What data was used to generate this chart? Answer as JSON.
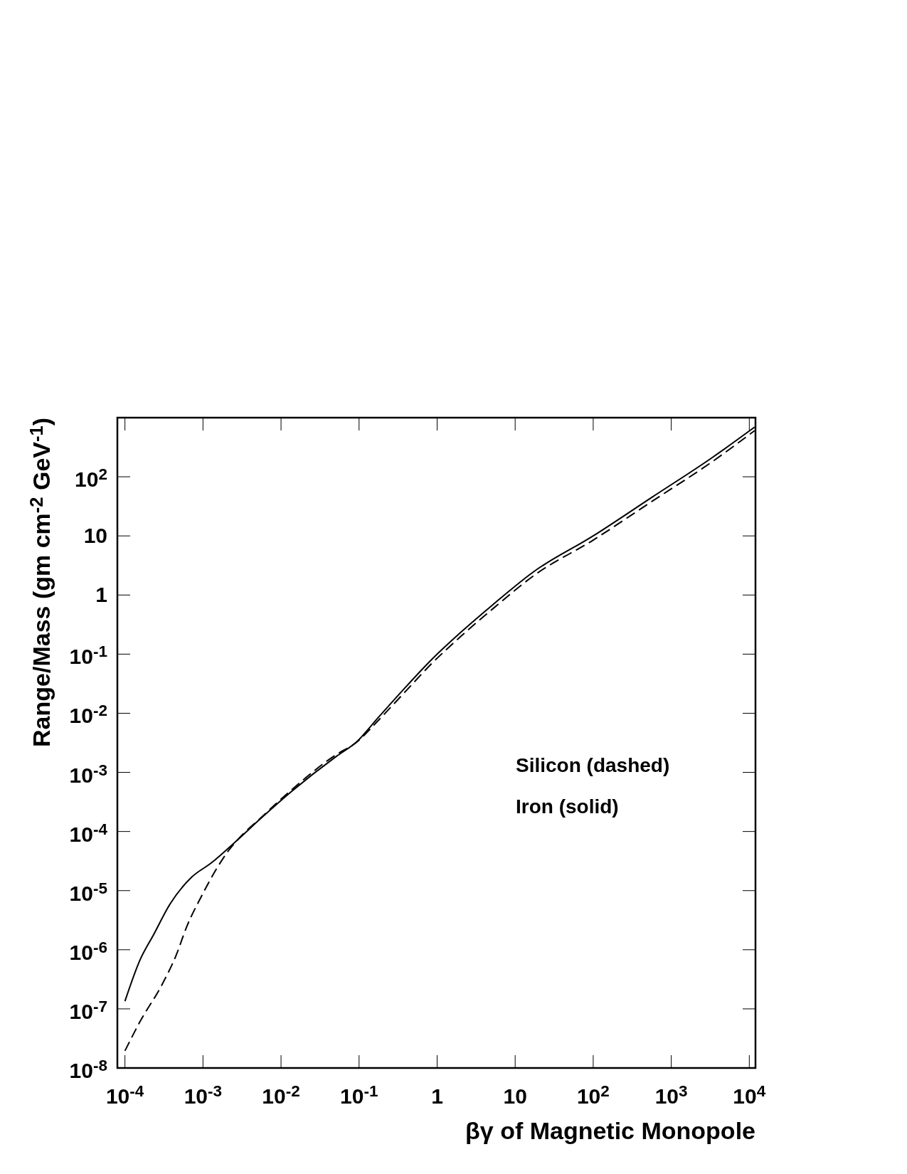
{
  "chart_data": {
    "type": "line",
    "xlabel": "βγ of Magnetic Monopole",
    "ylabel": "Range/Mass (gm cm$^{-2}$ GeV$^{-1}$)",
    "log": "xy",
    "xlim": [
      8e-05,
      12000.0
    ],
    "ylim": [
      1e-08,
      1000.0
    ],
    "xticks": [
      {
        "value": 0.0001,
        "label": "10$^{-4}$"
      },
      {
        "value": 0.001,
        "label": "10$^{-3}$"
      },
      {
        "value": 0.01,
        "label": "10$^{-2}$"
      },
      {
        "value": 0.1,
        "label": "10$^{-1}$"
      },
      1,
      10,
      {
        "value": 100,
        "label": "10$^{2}$"
      },
      {
        "value": 1000,
        "label": "10$^{3}$"
      },
      {
        "value": 10000,
        "label": "10$^{4}$"
      }
    ],
    "yticks": [
      {
        "value": 1e-08,
        "label": "10$^{-8}$"
      },
      {
        "value": 1e-07,
        "label": "10$^{-7}$"
      },
      {
        "value": 1e-06,
        "label": "10$^{-6}$"
      },
      {
        "value": 1e-05,
        "label": "10$^{-5}$"
      },
      {
        "value": 0.0001,
        "label": "10$^{-4}$"
      },
      {
        "value": 0.001,
        "label": "10$^{-3}$"
      },
      {
        "value": 0.01,
        "label": "10$^{-2}$"
      },
      {
        "value": 0.1,
        "label": "10$^{-1}$"
      },
      1,
      10,
      {
        "value": 100,
        "label": "10$^{2}$"
      }
    ],
    "annotations": [
      "Silicon (dashed)",
      "Iron (solid)"
    ],
    "series": [
      {
        "color": "#000000",
        "line_style": "dashed",
        "x": [
          0.0001,
          0.000155,
          0.0003,
          0.00045,
          0.00063,
          0.00095,
          0.00145,
          0.00219,
          0.00295,
          0.0055,
          0.0135,
          0.051,
          0.091,
          0.182,
          0.363,
          0.85,
          2.09,
          5.2,
          17.4,
          100,
          575,
          3310,
          11700
        ],
        "values": [
          1.95e-08,
          6e-08,
          2.6e-07,
          7.9e-07,
          2.6e-06,
          7.9e-06,
          2.2e-05,
          5e-05,
          7.9e-05,
          0.00017,
          0.0005,
          0.002,
          0.00316,
          0.0079,
          0.0209,
          0.069,
          0.209,
          0.589,
          2.14,
          8.5,
          38.9,
          178,
          603
        ]
      },
      {
        "color": "#000000",
        "line_style": "solid",
        "x": [
          0.0001,
          0.000155,
          0.000234,
          0.00038,
          0.00072,
          0.00126,
          0.00257,
          0.0055,
          0.0135,
          0.051,
          0.091,
          0.182,
          0.363,
          0.85,
          2.09,
          5.2,
          17.4,
          100,
          575,
          3310,
          11700
        ],
        "values": [
          1.35e-07,
          6.6e-07,
          1.82e-06,
          6e-06,
          1.7e-05,
          2.9e-05,
          6.6e-05,
          0.000166,
          0.00047,
          0.00186,
          0.0032,
          0.0089,
          0.0245,
          0.081,
          0.245,
          0.69,
          2.5,
          10,
          45.7,
          209,
          692
        ]
      }
    ]
  }
}
